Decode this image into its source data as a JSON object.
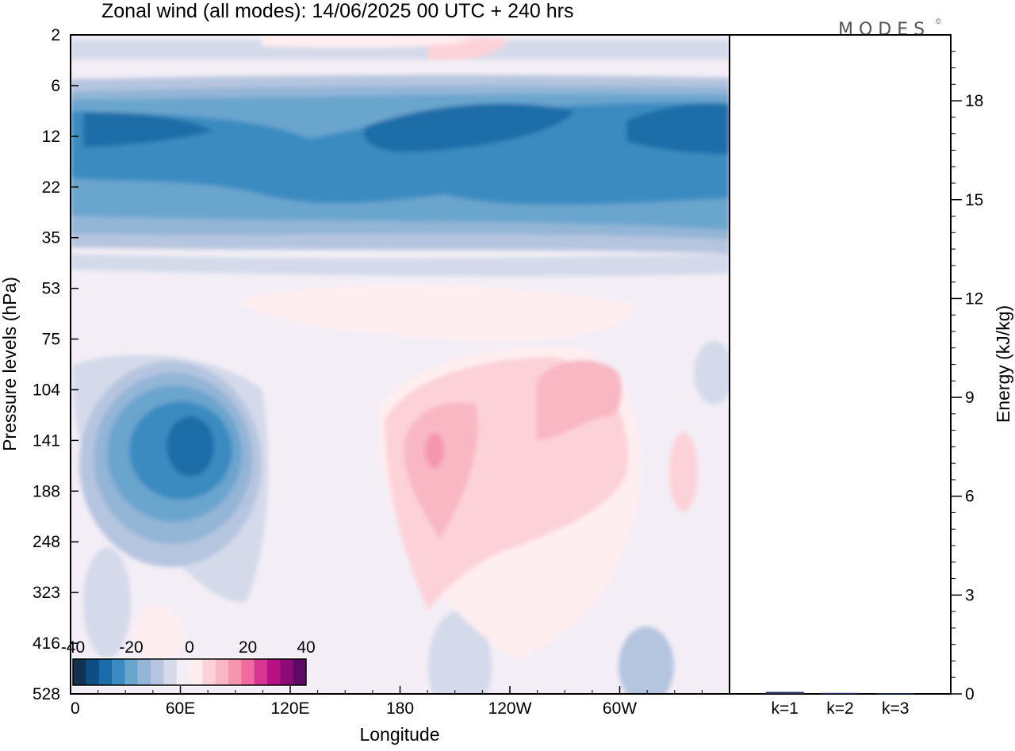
{
  "chart_data": [
    {
      "type": "heatmap",
      "title": "Zonal wind (all modes):  14/06/2025  00 UTC  + 240 hrs",
      "xlabel": "Longitude",
      "ylabel": "Pressure levels (hPa)",
      "x_ticks": [
        "0",
        "60E",
        "120E",
        "180",
        "120W",
        "60W"
      ],
      "x_tick_values": [
        0,
        60,
        120,
        180,
        240,
        300
      ],
      "x_range": [
        0,
        360
      ],
      "y_ticks": [
        "2",
        "6",
        "12",
        "22",
        "35",
        "53",
        "75",
        "104",
        "141",
        "188",
        "248",
        "323",
        "416",
        "528"
      ],
      "y_scale": "level index (non-uniform pressure levels)",
      "y_direction": "2 at top, 528 at bottom",
      "colorbar": {
        "tick_labels": [
          "-40",
          "-20",
          "0",
          "20",
          "40"
        ],
        "tick_values": [
          -40,
          -20,
          0,
          20,
          40
        ],
        "bin_colors": [
          "#12304f",
          "#0d4f80",
          "#1a6da8",
          "#3a8bc1",
          "#6aa5cd",
          "#93b5d6",
          "#b6c5df",
          "#d4daea",
          "#f3eef5",
          "#ffeef0",
          "#fcd2d8",
          "#f8b7c2",
          "#f595ae",
          "#ee6aa0",
          "#d83592",
          "#b71284",
          "#8b0c77",
          "#5d0a66"
        ],
        "bins_per_side": 9,
        "position": "bottom-left inset"
      },
      "features": [
        {
          "name": "stratospheric easterly jet",
          "levels": "6-35 hPa",
          "longitudes": "0-360",
          "value_range": [
            -30,
            -20
          ]
        },
        {
          "name": "easterly maximum",
          "level_hPa": 141,
          "longitude": 65,
          "value": -30
        },
        {
          "name": "westerly maximum",
          "level_hPa": 141,
          "longitude": 195,
          "value": 15
        },
        {
          "name": "westerly region",
          "level_hPa": 104,
          "longitude": 265,
          "value": 10
        },
        {
          "name": "upper positive patch",
          "level_hPa": 2,
          "longitude": 210,
          "value": 6
        }
      ]
    },
    {
      "type": "bar",
      "categories": [
        "k=1",
        "k=2",
        "k=3"
      ],
      "values": [
        0.06,
        0.03,
        0.02
      ],
      "ylabel": "Energy (kJ/kg)",
      "y_ticks": [
        "0",
        "3",
        "6",
        "9",
        "12",
        "15",
        "18"
      ],
      "y_tick_values": [
        0,
        3,
        6,
        9,
        12,
        15,
        18
      ],
      "ylim": [
        0,
        20
      ],
      "bar_color": "#1f2a5a"
    }
  ],
  "brand": "MODES",
  "brand_mark": "©"
}
